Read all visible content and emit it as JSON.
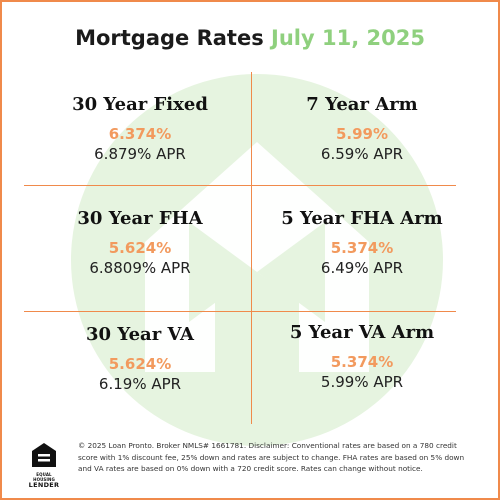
{
  "title": {
    "main": "Mortgage Rates",
    "date": "July 11, 2025"
  },
  "rates": [
    {
      "name": "30 Year Fixed",
      "rate": "6.374%",
      "apr": "6.879% APR"
    },
    {
      "name": "7 Year Arm",
      "rate": "5.99%",
      "apr": "6.59% APR"
    },
    {
      "name": "30 Year FHA",
      "rate": "5.624%",
      "apr": "6.8809% APR"
    },
    {
      "name": "5 Year FHA Arm",
      "rate": "5.374%",
      "apr": "6.49% APR"
    },
    {
      "name": "30 Year VA",
      "rate": "5.624%",
      "apr": "6.19% APR"
    },
    {
      "name": "5 Year VA Arm",
      "rate": "5.374%",
      "apr": "5.99% APR"
    }
  ],
  "footer": {
    "logo_line1": "EQUAL HOUSING",
    "logo_line2": "LENDER",
    "disclaimer": "© 2025 Loan Pronto. Broker NMLS# 1661781. Disclaimer: Conventional rates are based on a 780 credit score with 1% discount fee, 25% down and rates are subject to change. FHA rates are based on 5% down and VA rates are based on 0% down with a 720 credit score. Rates can change without notice."
  },
  "colors": {
    "accent_orange": "#f29a5e",
    "border_orange": "#f08a4b",
    "date_green": "#8fd07e",
    "watermark_green": "#e6f4e0"
  },
  "icons": {
    "watermark": "brand-logo-watermark",
    "footer_logo": "equal-housing-lender-icon"
  }
}
